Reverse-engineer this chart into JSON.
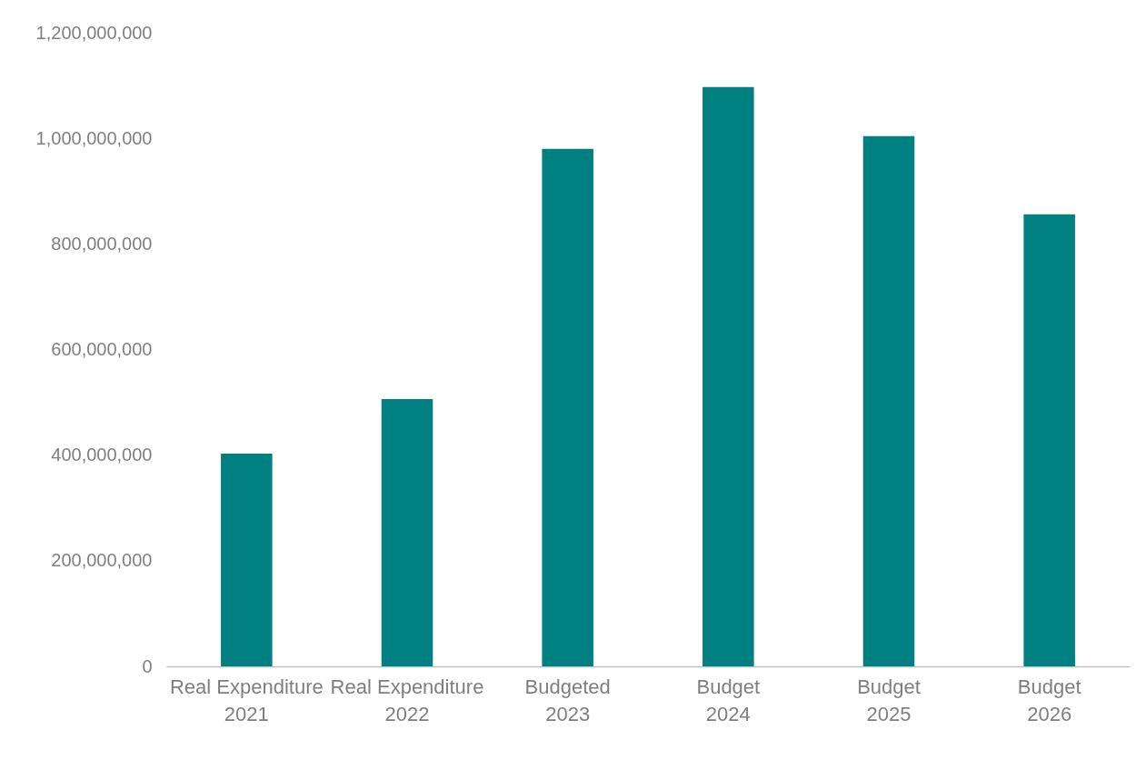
{
  "chart_data": {
    "type": "bar",
    "categories": [
      "Real Expenditure 2021",
      "Real Expenditure 2022",
      "Budgeted 2023",
      "Budget 2024",
      "Budget 2025",
      "Budget 2026"
    ],
    "values": [
      403000000,
      506000000,
      980000000,
      1097000000,
      1004000000,
      856000000
    ],
    "color": "#008080",
    "ylim": [
      0,
      1200000000
    ],
    "yticks": [
      0,
      {
        "value": 200000000,
        "label": "200,000,000"
      },
      {
        "value": 400000000,
        "label": "400,000,000"
      },
      {
        "value": 600000000,
        "label": "600,000,000"
      },
      {
        "value": 800000000,
        "label": "800,000,000"
      },
      {
        "value": 1000000000,
        "label": "1,000,000,000"
      },
      {
        "value": 1200000000,
        "label": "1,200,000,000"
      }
    ],
    "grid": false
  }
}
